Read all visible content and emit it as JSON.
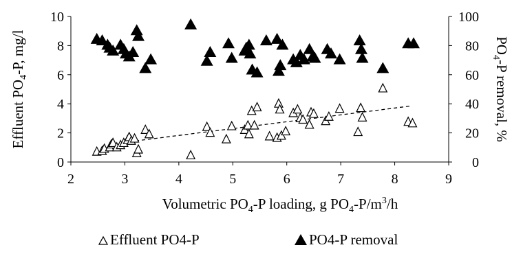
{
  "chart_data": {
    "type": "scatter",
    "xlabel": "Volumetric PO4-P loading, g PO4-P/m3/h",
    "ylabel_left": "Effluent PO4-P, mg/l",
    "ylabel_right": "PO4-P removal, %",
    "xlim": [
      2,
      9
    ],
    "ylim_left": [
      0,
      10
    ],
    "ylim_right": [
      0,
      100
    ],
    "x_ticks": [
      "2",
      "3",
      "4",
      "5",
      "6",
      "7",
      "8",
      "9"
    ],
    "y_left_ticks": [
      "0",
      "2",
      "4",
      "6",
      "8",
      "10"
    ],
    "y_right_ticks": [
      "0",
      "20",
      "40",
      "60",
      "80",
      "100"
    ],
    "grid": false,
    "legend_position": "bottom",
    "series": [
      {
        "name": "Effluent PO4-P",
        "axis": "left",
        "marker": "open-triangle",
        "color": "#000000",
        "points": [
          [
            2.48,
            0.7
          ],
          [
            2.58,
            0.75
          ],
          [
            2.62,
            0.9
          ],
          [
            2.72,
            1.0
          ],
          [
            2.75,
            1.2
          ],
          [
            2.78,
            1.3
          ],
          [
            2.85,
            1.0
          ],
          [
            2.92,
            1.15
          ],
          [
            2.98,
            1.3
          ],
          [
            3.05,
            1.5
          ],
          [
            3.08,
            1.7
          ],
          [
            3.12,
            1.45
          ],
          [
            3.18,
            1.6
          ],
          [
            3.22,
            0.6
          ],
          [
            3.25,
            0.85
          ],
          [
            3.38,
            2.2
          ],
          [
            3.45,
            1.9
          ],
          [
            4.22,
            0.45
          ],
          [
            4.52,
            2.4
          ],
          [
            4.58,
            2.0
          ],
          [
            4.88,
            1.55
          ],
          [
            4.98,
            2.45
          ],
          [
            5.22,
            2.2
          ],
          [
            5.28,
            2.5
          ],
          [
            5.3,
            1.9
          ],
          [
            5.35,
            3.5
          ],
          [
            5.4,
            2.5
          ],
          [
            5.45,
            3.75
          ],
          [
            5.68,
            1.75
          ],
          [
            5.82,
            1.65
          ],
          [
            5.85,
            4.0
          ],
          [
            5.87,
            3.6
          ],
          [
            5.9,
            1.8
          ],
          [
            5.98,
            2.1
          ],
          [
            6.12,
            3.35
          ],
          [
            6.2,
            3.6
          ],
          [
            6.25,
            3.0
          ],
          [
            6.3,
            2.9
          ],
          [
            6.42,
            2.55
          ],
          [
            6.45,
            3.4
          ],
          [
            6.5,
            3.3
          ],
          [
            6.72,
            2.8
          ],
          [
            6.78,
            3.1
          ],
          [
            6.98,
            3.65
          ],
          [
            7.32,
            2.05
          ],
          [
            7.37,
            3.7
          ],
          [
            7.4,
            3.05
          ],
          [
            7.78,
            5.05
          ],
          [
            8.25,
            2.75
          ],
          [
            8.33,
            2.65
          ]
        ]
      },
      {
        "name": "PO4-P removal",
        "axis": "right",
        "marker": "filled-triangle",
        "color": "#000000",
        "points": [
          [
            2.48,
            84
          ],
          [
            2.58,
            83
          ],
          [
            2.68,
            80
          ],
          [
            2.72,
            78
          ],
          [
            2.78,
            76
          ],
          [
            2.92,
            80
          ],
          [
            2.98,
            77
          ],
          [
            3.02,
            74
          ],
          [
            3.08,
            72
          ],
          [
            3.15,
            75
          ],
          [
            3.22,
            90
          ],
          [
            3.25,
            86
          ],
          [
            3.38,
            64
          ],
          [
            3.48,
            70
          ],
          [
            4.22,
            94
          ],
          [
            4.52,
            69
          ],
          [
            4.58,
            75
          ],
          [
            4.92,
            81
          ],
          [
            4.98,
            71
          ],
          [
            5.22,
            76
          ],
          [
            5.25,
            78
          ],
          [
            5.3,
            80
          ],
          [
            5.32,
            74
          ],
          [
            5.36,
            63
          ],
          [
            5.45,
            61
          ],
          [
            5.62,
            83
          ],
          [
            5.82,
            84
          ],
          [
            5.85,
            62
          ],
          [
            5.88,
            66
          ],
          [
            5.92,
            80
          ],
          [
            6.12,
            70
          ],
          [
            6.18,
            68
          ],
          [
            6.25,
            73
          ],
          [
            6.32,
            70
          ],
          [
            6.42,
            77
          ],
          [
            6.48,
            72
          ],
          [
            6.52,
            71
          ],
          [
            6.75,
            77
          ],
          [
            6.82,
            74
          ],
          [
            6.98,
            70
          ],
          [
            7.35,
            83
          ],
          [
            7.38,
            77
          ],
          [
            7.4,
            71
          ],
          [
            7.78,
            64
          ],
          [
            8.25,
            81
          ],
          [
            8.35,
            81
          ]
        ]
      }
    ],
    "trendline": {
      "series": "Effluent PO4-P",
      "style": "dashed",
      "from": [
        3.2,
        1.45
      ],
      "to": [
        8.3,
        3.85
      ]
    }
  }
}
